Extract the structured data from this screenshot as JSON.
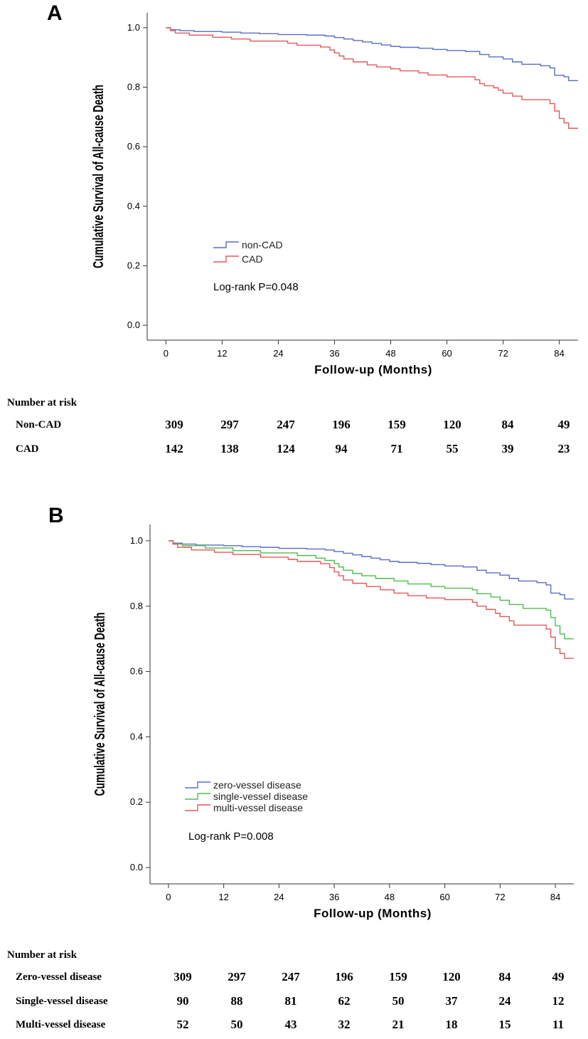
{
  "chart_data": [
    {
      "type": "line",
      "panel": "A",
      "title": "",
      "xlabel": "Follow-up (Months)",
      "ylabel": "Cumulative Survival of All-cause Death",
      "xlim": [
        -4,
        88
      ],
      "ylim": [
        -0.05,
        1.05
      ],
      "x_ticks": [
        "0",
        "12",
        "24",
        "36",
        "48",
        "60",
        "72",
        "84"
      ],
      "y_ticks": [
        "0.0",
        "0.2",
        "0.4",
        "0.6",
        "0.8",
        "1.0"
      ],
      "annotation": "Log-rank P=0.048",
      "legend_position": "center-left",
      "series": [
        {
          "name": "non-CAD",
          "color": "#5b6dc2",
          "steps": [
            [
              0,
              1.0
            ],
            [
              1,
              0.993
            ],
            [
              3,
              0.99
            ],
            [
              6,
              0.987
            ],
            [
              12,
              0.985
            ],
            [
              16,
              0.982
            ],
            [
              20,
              0.98
            ],
            [
              24,
              0.977
            ],
            [
              30,
              0.975
            ],
            [
              34,
              0.972
            ],
            [
              36,
              0.967
            ],
            [
              38,
              0.962
            ],
            [
              40,
              0.957
            ],
            [
              42,
              0.952
            ],
            [
              44,
              0.947
            ],
            [
              46,
              0.942
            ],
            [
              48,
              0.937
            ],
            [
              50,
              0.934
            ],
            [
              54,
              0.931
            ],
            [
              57,
              0.927
            ],
            [
              60,
              0.923
            ],
            [
              64,
              0.92
            ],
            [
              67,
              0.91
            ],
            [
              69,
              0.902
            ],
            [
              72,
              0.895
            ],
            [
              74,
              0.885
            ],
            [
              76,
              0.877
            ],
            [
              80,
              0.872
            ],
            [
              82,
              0.865
            ],
            [
              83,
              0.84
            ],
            [
              85,
              0.835
            ],
            [
              86,
              0.822
            ],
            [
              88,
              0.822
            ]
          ]
        },
        {
          "name": "CAD",
          "color": "#e2585a",
          "steps": [
            [
              0,
              1.0
            ],
            [
              1,
              0.99
            ],
            [
              2,
              0.982
            ],
            [
              5,
              0.975
            ],
            [
              10,
              0.968
            ],
            [
              14,
              0.962
            ],
            [
              18,
              0.955
            ],
            [
              26,
              0.948
            ],
            [
              28,
              0.941
            ],
            [
              33,
              0.935
            ],
            [
              35,
              0.925
            ],
            [
              36,
              0.915
            ],
            [
              37,
              0.905
            ],
            [
              38,
              0.895
            ],
            [
              40,
              0.885
            ],
            [
              43,
              0.875
            ],
            [
              45,
              0.868
            ],
            [
              48,
              0.862
            ],
            [
              50,
              0.855
            ],
            [
              54,
              0.848
            ],
            [
              56,
              0.841
            ],
            [
              60,
              0.835
            ],
            [
              66,
              0.825
            ],
            [
              67,
              0.812
            ],
            [
              68,
              0.805
            ],
            [
              70,
              0.798
            ],
            [
              71,
              0.79
            ],
            [
              72,
              0.78
            ],
            [
              74,
              0.77
            ],
            [
              76,
              0.758
            ],
            [
              82,
              0.745
            ],
            [
              83,
              0.72
            ],
            [
              84,
              0.695
            ],
            [
              85,
              0.68
            ],
            [
              86,
              0.662
            ],
            [
              88,
              0.662
            ]
          ]
        }
      ],
      "risk_table": {
        "heading": "Number at risk",
        "time_points": [
          0,
          12,
          24,
          36,
          48,
          60,
          72,
          84
        ],
        "rows": [
          {
            "label": "Non-CAD",
            "values": [
              "309",
              "297",
              "247",
              "196",
              "159",
              "120",
              "84",
              "49"
            ]
          },
          {
            "label": "CAD",
            "values": [
              "142",
              "138",
              "124",
              "94",
              "71",
              "55",
              "39",
              "23"
            ]
          }
        ]
      }
    },
    {
      "type": "line",
      "panel": "B",
      "title": "",
      "xlabel": "Follow-up (Months)",
      "ylabel": "Cumulative Survival of All-cause Death",
      "xlim": [
        -4,
        88
      ],
      "ylim": [
        -0.05,
        1.05
      ],
      "x_ticks": [
        "0",
        "12",
        "24",
        "36",
        "48",
        "60",
        "72",
        "84"
      ],
      "y_ticks": [
        "0.0",
        "0.2",
        "0.4",
        "0.6",
        "0.8",
        "1.0"
      ],
      "annotation": "Log-rank P=0.008",
      "legend_position": "center-left",
      "series": [
        {
          "name": "zero-vessel disease",
          "color": "#5b6dc2",
          "steps": [
            [
              0,
              1.0
            ],
            [
              1,
              0.993
            ],
            [
              3,
              0.99
            ],
            [
              6,
              0.987
            ],
            [
              12,
              0.985
            ],
            [
              16,
              0.982
            ],
            [
              20,
              0.98
            ],
            [
              24,
              0.977
            ],
            [
              30,
              0.975
            ],
            [
              34,
              0.972
            ],
            [
              36,
              0.967
            ],
            [
              38,
              0.962
            ],
            [
              40,
              0.957
            ],
            [
              42,
              0.952
            ],
            [
              44,
              0.947
            ],
            [
              46,
              0.942
            ],
            [
              48,
              0.937
            ],
            [
              50,
              0.934
            ],
            [
              54,
              0.931
            ],
            [
              57,
              0.927
            ],
            [
              60,
              0.923
            ],
            [
              64,
              0.92
            ],
            [
              67,
              0.91
            ],
            [
              69,
              0.902
            ],
            [
              72,
              0.895
            ],
            [
              74,
              0.885
            ],
            [
              76,
              0.877
            ],
            [
              80,
              0.872
            ],
            [
              82,
              0.865
            ],
            [
              83,
              0.84
            ],
            [
              85,
              0.835
            ],
            [
              86,
              0.822
            ],
            [
              88,
              0.822
            ]
          ]
        },
        {
          "name": "single-vessel disease",
          "color": "#4cbf4c",
          "steps": [
            [
              0,
              1.0
            ],
            [
              1,
              0.99
            ],
            [
              3,
              0.985
            ],
            [
              8,
              0.978
            ],
            [
              14,
              0.97
            ],
            [
              20,
              0.963
            ],
            [
              28,
              0.955
            ],
            [
              32,
              0.947
            ],
            [
              34,
              0.94
            ],
            [
              36,
              0.93
            ],
            [
              37,
              0.92
            ],
            [
              38,
              0.91
            ],
            [
              40,
              0.9
            ],
            [
              42,
              0.893
            ],
            [
              45,
              0.885
            ],
            [
              49,
              0.877
            ],
            [
              52,
              0.868
            ],
            [
              57,
              0.86
            ],
            [
              60,
              0.855
            ],
            [
              66,
              0.85
            ],
            [
              67,
              0.838
            ],
            [
              70,
              0.828
            ],
            [
              72,
              0.818
            ],
            [
              74,
              0.805
            ],
            [
              77,
              0.793
            ],
            [
              82,
              0.788
            ],
            [
              83,
              0.765
            ],
            [
              84,
              0.74
            ],
            [
              85,
              0.715
            ],
            [
              86,
              0.7
            ],
            [
              88,
              0.7
            ]
          ]
        },
        {
          "name": "multi-vessel disease",
          "color": "#e2585a",
          "steps": [
            [
              0,
              1.0
            ],
            [
              1,
              0.99
            ],
            [
              2,
              0.98
            ],
            [
              5,
              0.972
            ],
            [
              10,
              0.965
            ],
            [
              14,
              0.958
            ],
            [
              20,
              0.95
            ],
            [
              26,
              0.943
            ],
            [
              28,
              0.937
            ],
            [
              33,
              0.93
            ],
            [
              35,
              0.918
            ],
            [
              36,
              0.905
            ],
            [
              37,
              0.893
            ],
            [
              38,
              0.88
            ],
            [
              40,
              0.87
            ],
            [
              43,
              0.86
            ],
            [
              46,
              0.85
            ],
            [
              49,
              0.84
            ],
            [
              52,
              0.832
            ],
            [
              56,
              0.825
            ],
            [
              60,
              0.82
            ],
            [
              66,
              0.812
            ],
            [
              67,
              0.8
            ],
            [
              69,
              0.79
            ],
            [
              71,
              0.778
            ],
            [
              72,
              0.768
            ],
            [
              74,
              0.755
            ],
            [
              75,
              0.742
            ],
            [
              82,
              0.73
            ],
            [
              83,
              0.705
            ],
            [
              84,
              0.67
            ],
            [
              85,
              0.655
            ],
            [
              86,
              0.64
            ],
            [
              88,
              0.64
            ]
          ]
        }
      ],
      "risk_table": {
        "heading": "Number at risk",
        "time_points": [
          0,
          12,
          24,
          36,
          48,
          60,
          72,
          84
        ],
        "rows": [
          {
            "label": "Zero-vessel disease",
            "values": [
              "309",
              "297",
              "247",
              "196",
              "159",
              "120",
              "84",
              "49"
            ]
          },
          {
            "label": "Single-vessel disease",
            "values": [
              "90",
              "88",
              "81",
              "62",
              "50",
              "37",
              "24",
              "12"
            ]
          },
          {
            "label": "Multi-vessel disease",
            "values": [
              "52",
              "50",
              "43",
              "32",
              "21",
              "18",
              "15",
              "11"
            ]
          }
        ]
      }
    }
  ]
}
